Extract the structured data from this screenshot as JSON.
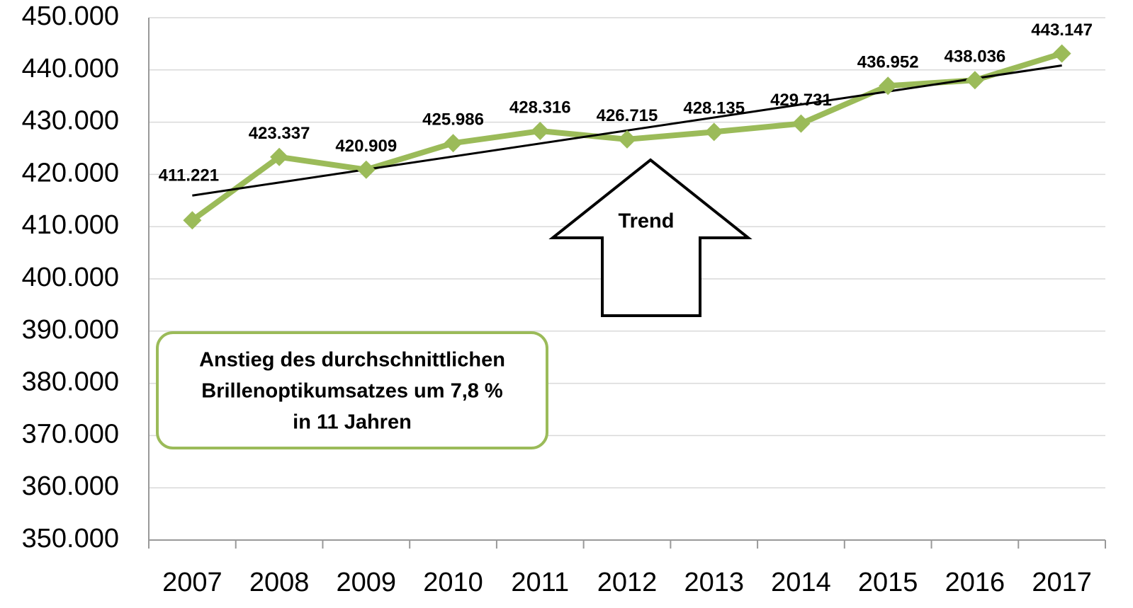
{
  "chart_data": {
    "type": "line",
    "categories": [
      "2007",
      "2008",
      "2009",
      "2010",
      "2011",
      "2012",
      "2013",
      "2014",
      "2015",
      "2016",
      "2017"
    ],
    "series": [
      {
        "name": null,
        "color": "#9bbb59",
        "values": [
          411221,
          423337,
          420909,
          425986,
          428316,
          426715,
          428135,
          429731,
          436952,
          438036,
          443147
        ],
        "value_labels": [
          "411.221",
          "423.337",
          "420.909",
          "425.986",
          "428.316",
          "426.715",
          "428.135",
          "429.731",
          "436.952",
          "438.036",
          "443.147"
        ]
      }
    ],
    "trendline": true,
    "trend_color": "#000000",
    "ylim": [
      350000,
      450000
    ],
    "yticks": [
      {
        "value": 350000,
        "label": "350.000"
      },
      {
        "value": 360000,
        "label": "360.000"
      },
      {
        "value": 370000,
        "label": "370.000"
      },
      {
        "value": 380000,
        "label": "380.000"
      },
      {
        "value": 390000,
        "label": "390.000"
      },
      {
        "value": 400000,
        "label": "400.000"
      },
      {
        "value": 410000,
        "label": "410.000"
      },
      {
        "value": 420000,
        "label": "420.000"
      },
      {
        "value": 430000,
        "label": "430.000"
      },
      {
        "value": 440000,
        "label": "440.000"
      },
      {
        "value": 450000,
        "label": "450.000"
      }
    ],
    "grid": true,
    "annotations": {
      "arrow_text": "Trend",
      "box_lines": [
        "Anstieg des durchschnittlichen",
        "Brillenoptikumsatzes um 7,8 %",
        "in 11 Jahren"
      ]
    }
  }
}
